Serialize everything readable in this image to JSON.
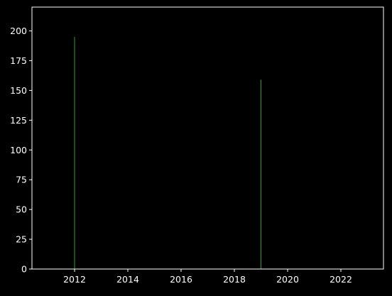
{
  "chart_data": {
    "type": "bar",
    "title": "",
    "xlabel": "",
    "ylabel": "",
    "x": [
      2012,
      2019
    ],
    "values": [
      195,
      159
    ],
    "xlim": [
      2010.4,
      2023.6
    ],
    "ylim": [
      0,
      220
    ],
    "xticks": [
      2012,
      2014,
      2016,
      2018,
      2020,
      2022
    ],
    "yticks": [
      0,
      25,
      50,
      75,
      100,
      125,
      150,
      175,
      200
    ],
    "grid": false,
    "colors": {
      "background": "#000000",
      "axes": "#ffffff",
      "text": "#ffffff",
      "bar": "#2ca02c"
    }
  }
}
